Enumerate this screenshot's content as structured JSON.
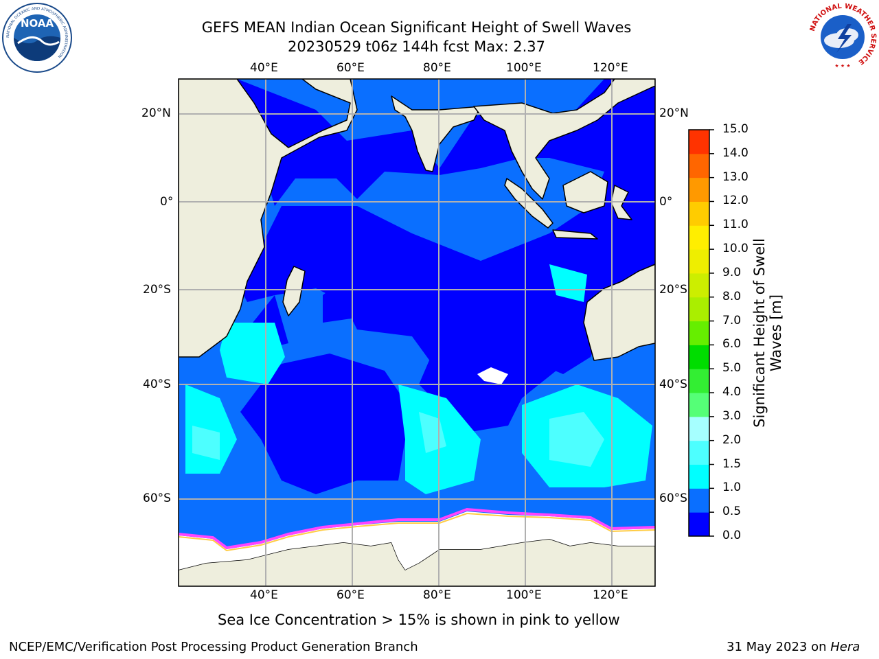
{
  "title": {
    "line1": "GEFS MEAN Indian Ocean Significant Height of Swell Waves",
    "line2": "20230529 t06z 144h fcst   Max: 2.37"
  },
  "map": {
    "lon_labels_top": [
      "40°E",
      "60°E",
      "80°E",
      "100°E",
      "120°E"
    ],
    "lon_labels_bottom": [
      "40°E",
      "60°E",
      "80°E",
      "100°E",
      "120°E"
    ],
    "lat_labels_left": [
      "20°N",
      "0°",
      "20°S",
      "40°S",
      "60°S"
    ],
    "lat_labels_right": [
      "20°N",
      "0°",
      "20°S",
      "40°S",
      "60°S"
    ],
    "colors": {
      "land": "#eeeedd",
      "sea_ice": "#ffffff",
      "gridline": "#b0b0b0",
      "coast": "#000000"
    }
  },
  "colorbar": {
    "label_line1": "Significant Height of Swell",
    "label_line2": "Waves [m]",
    "ticks": [
      "0.0",
      "0.5",
      "1.0",
      "1.5",
      "2.0",
      "3.0",
      "4.0",
      "5.0",
      "6.0",
      "7.0",
      "8.0",
      "9.0",
      "10.0",
      "11.0",
      "12.0",
      "13.0",
      "14.0",
      "15.0"
    ],
    "colors": [
      "#0000ff",
      "#0a6fff",
      "#00ffff",
      "#4dffff",
      "#a6ffff",
      "#55ff77",
      "#33ee33",
      "#00dd00",
      "#66ee00",
      "#aaee00",
      "#ccee00",
      "#eeee00",
      "#ffee00",
      "#ffcc00",
      "#ff9900",
      "#ff6600",
      "#ff3300",
      "#ff0000"
    ]
  },
  "note": "Sea Ice Concentration > 15% is shown in pink to yellow",
  "footer": {
    "left": "NCEP/EMC/Verification Post Processing Product Generation Branch",
    "right_prefix": "31 May 2023 on ",
    "right_machine": "Hera"
  },
  "logos": {
    "left_text": "NOAA",
    "left_ring": "NATIONAL OCEANIC AND ATMOSPHERIC ADMINISTRATION",
    "right_ring": "NATIONAL WEATHER SERVICE"
  }
}
